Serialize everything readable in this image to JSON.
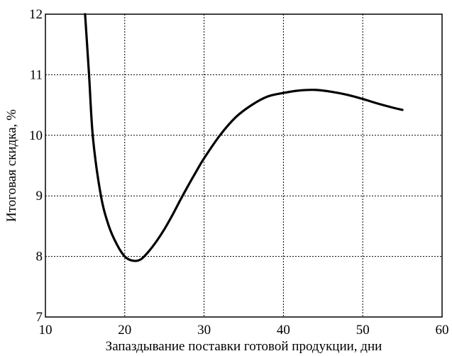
{
  "chart_data": {
    "type": "line",
    "title": "",
    "xlabel": "Запаздывание поставки готовой продукции, дни",
    "ylabel": "Итоговая скидка, %",
    "xlim": [
      10,
      60
    ],
    "ylim": [
      7,
      12
    ],
    "xticks": [
      10,
      20,
      30,
      40,
      50,
      60
    ],
    "yticks": [
      7,
      8,
      9,
      10,
      11,
      12
    ],
    "x_tick_labels": [
      "10",
      "20",
      "30",
      "40",
      "50",
      "60"
    ],
    "y_tick_labels": [
      "7",
      "8",
      "9",
      "10",
      "11",
      "12"
    ],
    "grid": true,
    "legend": "none",
    "series": [
      {
        "color": "#000000",
        "x": [
          15.0,
          15.5,
          16.0,
          17.0,
          18.0,
          19.0,
          20.0,
          21.0,
          22.0,
          23.0,
          24.0,
          25.0,
          26.0,
          27.0,
          28.0,
          29.0,
          30.0,
          32.0,
          34.0,
          36.0,
          38.0,
          40.0,
          42.0,
          44.0,
          46.0,
          48.0,
          50.0,
          52.0,
          54.0,
          55.0
        ],
        "y": [
          12.0,
          11.0,
          9.95,
          9.0,
          8.5,
          8.2,
          8.0,
          7.93,
          7.95,
          8.08,
          8.25,
          8.45,
          8.68,
          8.93,
          9.17,
          9.4,
          9.62,
          10.0,
          10.3,
          10.5,
          10.64,
          10.7,
          10.74,
          10.75,
          10.72,
          10.67,
          10.6,
          10.52,
          10.45,
          10.42
        ]
      }
    ]
  }
}
